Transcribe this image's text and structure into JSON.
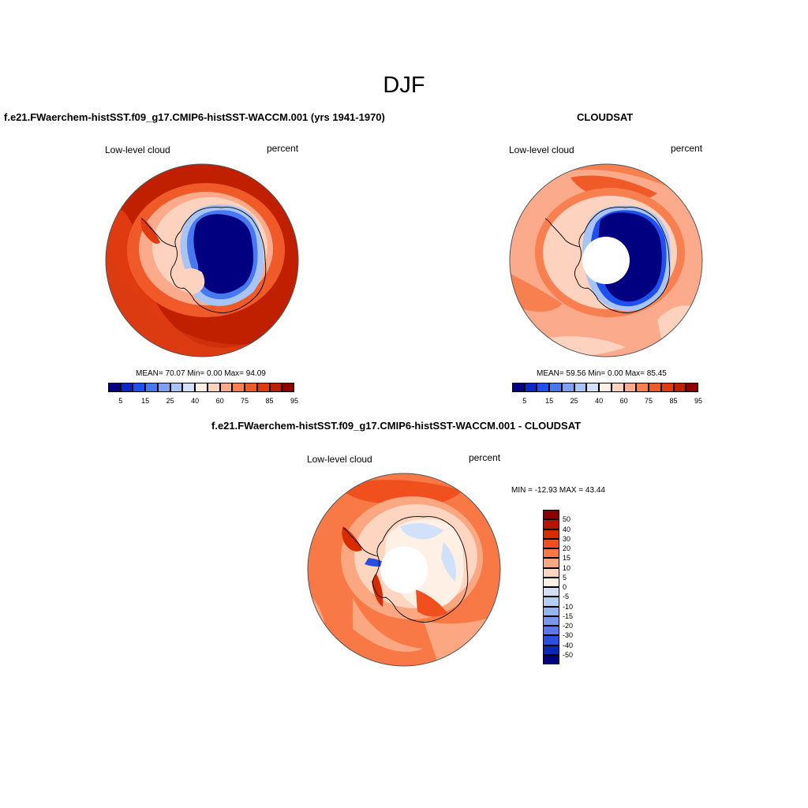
{
  "figure_title": "DJF",
  "colors": {
    "land_outline": "#000000",
    "frame": "#555555",
    "seq_scale": [
      "#000080",
      "#0a28c8",
      "#1e50f0",
      "#4678f0",
      "#7da0f0",
      "#a8c4f5",
      "#d2e1fa",
      "#fff0e6",
      "#fdd2be",
      "#fbaa8c",
      "#f88050",
      "#f05a28",
      "#e03a10",
      "#c02000",
      "#8c0000"
    ],
    "diff_scale": [
      "#8c0000",
      "#b41400",
      "#d82c00",
      "#f0501e",
      "#f87846",
      "#fba882",
      "#fdd5c0",
      "#fff0e6",
      "#d2e1fa",
      "#b4cdf5",
      "#96b4f0",
      "#7896eb",
      "#5a78e6",
      "#2850dc",
      "#0a28b4",
      "#000080"
    ]
  },
  "panels": {
    "model": {
      "title": "f.e21.FWaerchem-histSST.f09_g17.CMIP6-histSST-WACCM.001 (yrs 1941-1970)",
      "left_label": "Low-level cloud",
      "right_label": "percent",
      "stats": "MEAN=  70.07  Min=   0.00  Max=  94.09",
      "mean": 70.07,
      "min": 0.0,
      "max": 94.09,
      "colorbar_ticks": [
        "5",
        "15",
        "25",
        "40",
        "60",
        "75",
        "85",
        "95"
      ]
    },
    "obs": {
      "title": "CLOUDSAT",
      "left_label": "Low-level cloud",
      "right_label": "percent",
      "stats": "MEAN=  59.56  Min=   0.00  Max=  85.45",
      "mean": 59.56,
      "min": 0.0,
      "max": 85.45,
      "colorbar_ticks": [
        "5",
        "15",
        "25",
        "40",
        "60",
        "75",
        "85",
        "95"
      ]
    },
    "diff": {
      "title": "f.e21.FWaerchem-histSST.f09_g17.CMIP6-histSST-WACCM.001 - CLOUDSAT",
      "left_label": "Low-level cloud",
      "right_label": "percent",
      "stats": "MIN = -12.93 MAX =  43.44",
      "min": -12.93,
      "max": 43.44,
      "colorbar_ticks": [
        "50",
        "40",
        "30",
        "20",
        "15",
        "10",
        "5",
        "0",
        "-5",
        "-10",
        "-15",
        "-20",
        "-30",
        "-40",
        "-50"
      ]
    }
  }
}
